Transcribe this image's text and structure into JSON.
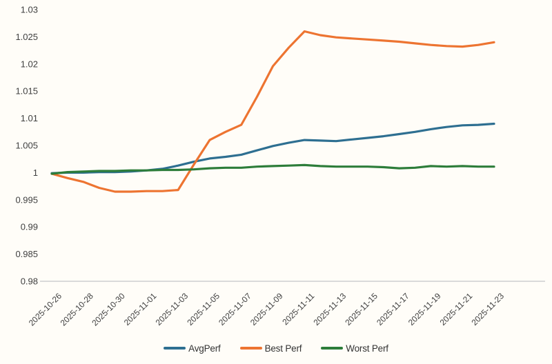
{
  "chart_data": {
    "type": "line",
    "x": [
      "2025-10-26",
      "2025-10-27",
      "2025-10-28",
      "2025-10-29",
      "2025-10-30",
      "2025-10-31",
      "2025-11-01",
      "2025-11-02",
      "2025-11-03",
      "2025-11-04",
      "2025-11-05",
      "2025-11-06",
      "2025-11-07",
      "2025-11-08",
      "2025-11-09",
      "2025-11-10",
      "2025-11-11",
      "2025-11-12",
      "2025-11-13",
      "2025-11-14",
      "2025-11-15",
      "2025-11-16",
      "2025-11-17",
      "2025-11-18",
      "2025-11-19",
      "2025-11-20",
      "2025-11-21",
      "2025-11-22",
      "2025-11-23"
    ],
    "x_tick_labels": [
      "2025-10-26",
      "2025-10-28",
      "2025-10-30",
      "2025-11-01",
      "2025-11-03",
      "2025-11-05",
      "2025-11-07",
      "2025-11-09",
      "2025-11-11",
      "2025-11-13",
      "2025-11-15",
      "2025-11-17",
      "2025-11-19",
      "2025-11-21",
      "2025-11-23"
    ],
    "y_tick_labels": [
      "1.03",
      "1.025",
      "1.02",
      "1.015",
      "1.01",
      "1.005",
      "1",
      "0.995",
      "0.99",
      "0.985",
      "0.98"
    ],
    "ylim": [
      0.98,
      1.03
    ],
    "title": "",
    "xlabel": "",
    "ylabel": "",
    "grid": false,
    "legend_position": "bottom",
    "series": [
      {
        "name": "AvgPerf",
        "color": "#2e6f91",
        "values": [
          0.9999,
          1.0,
          1.0,
          1.0001,
          1.0001,
          1.0002,
          1.0004,
          1.0007,
          1.0013,
          1.002,
          1.0026,
          1.0029,
          1.0033,
          1.0041,
          1.0049,
          1.0055,
          1.006,
          1.0059,
          1.0058,
          1.0061,
          1.0064,
          1.0067,
          1.0071,
          1.0075,
          1.008,
          1.0084,
          1.0087,
          1.0088,
          1.009
        ]
      },
      {
        "name": "Best Perf",
        "color": "#ed7431",
        "values": [
          0.9998,
          0.999,
          0.9983,
          0.9972,
          0.9965,
          0.9965,
          0.9966,
          0.9966,
          0.9968,
          1.0015,
          1.006,
          1.0075,
          1.0088,
          1.014,
          1.0196,
          1.023,
          1.026,
          1.0253,
          1.0249,
          1.0247,
          1.0245,
          1.0243,
          1.0241,
          1.0238,
          1.0235,
          1.0233,
          1.0232,
          1.0235,
          1.024
        ]
      },
      {
        "name": "Worst Perf",
        "color": "#2d7d3a",
        "values": [
          0.9998,
          1.0001,
          1.0002,
          1.0003,
          1.0003,
          1.0004,
          1.0004,
          1.0005,
          1.0005,
          1.0006,
          1.0008,
          1.0009,
          1.0009,
          1.0011,
          1.0012,
          1.0013,
          1.0014,
          1.0012,
          1.0011,
          1.0011,
          1.0011,
          1.001,
          1.0008,
          1.0009,
          1.0012,
          1.0011,
          1.0012,
          1.0011,
          1.0011
        ]
      }
    ],
    "style": {
      "background": "#fffdf8",
      "axis_line_color": "#d9d9d9",
      "tick_text_color": "#3f3f3f",
      "line_width": 3.2
    }
  }
}
